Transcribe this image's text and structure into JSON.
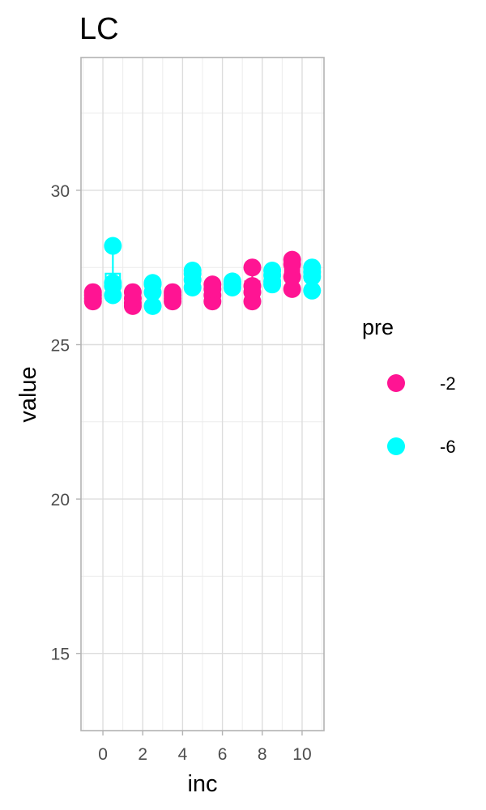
{
  "chart_data": {
    "type": "boxplot",
    "title": "LC",
    "xlabel": "inc",
    "ylabel": "value",
    "xlim": [
      -1.1,
      11.1
    ],
    "ylim": [
      12.5,
      34.3
    ],
    "x_ticks": [
      0,
      2,
      4,
      6,
      8,
      10
    ],
    "y_ticks": [
      15,
      20,
      25,
      30
    ],
    "grid": true,
    "legend": {
      "title": "pre",
      "position": "right",
      "entries": [
        {
          "label": "-2",
          "color": "#FF1493"
        },
        {
          "label": "-6",
          "color": "#00FFFF"
        }
      ]
    },
    "series": [
      {
        "name": "-2",
        "color": "#FF1493",
        "groups": [
          {
            "x": 0,
            "points": [
              26.4,
              26.5,
              26.6,
              26.7
            ]
          },
          {
            "x": 2,
            "points": [
              26.25,
              26.35,
              26.5,
              26.7
            ]
          },
          {
            "x": 4,
            "points": [
              26.4,
              26.5,
              26.6,
              26.7
            ]
          },
          {
            "x": 6,
            "points": [
              26.4,
              26.6,
              26.8,
              26.95
            ]
          },
          {
            "x": 8,
            "points": [
              26.4,
              26.7,
              26.9,
              27.5
            ]
          },
          {
            "x": 10,
            "points": [
              26.8,
              27.2,
              27.6,
              27.75
            ]
          }
        ]
      },
      {
        "name": "-6",
        "color": "#00FFFF",
        "groups": [
          {
            "x": 0,
            "points": [
              26.6,
              26.9,
              27.0,
              28.2
            ]
          },
          {
            "x": 2,
            "points": [
              26.25,
              26.7,
              26.95,
              27.0
            ]
          },
          {
            "x": 4,
            "points": [
              26.85,
              27.1,
              27.3,
              27.4
            ]
          },
          {
            "x": 6,
            "points": [
              26.85,
              26.95,
              27.0,
              27.05
            ]
          },
          {
            "x": 8,
            "points": [
              26.95,
              27.05,
              27.25,
              27.4
            ]
          },
          {
            "x": 10,
            "points": [
              26.75,
              27.2,
              27.35,
              27.5
            ]
          }
        ]
      }
    ]
  }
}
